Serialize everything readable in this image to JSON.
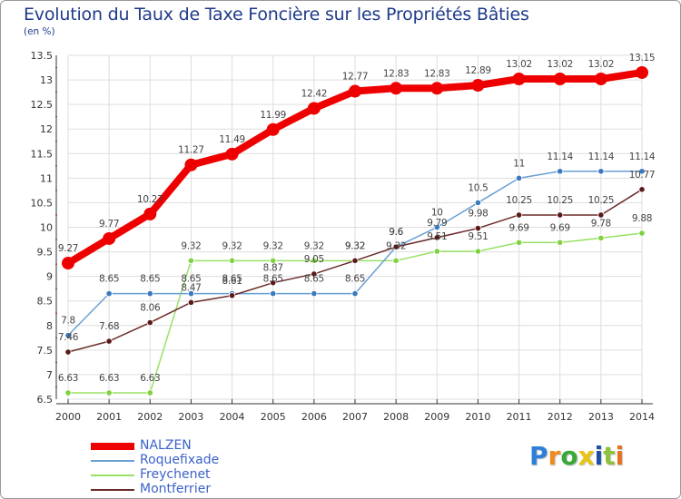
{
  "header": {
    "title": "Evolution du Taux de Taxe Foncière sur les Propriétés Bâties",
    "unit": "(en %)"
  },
  "colors": {
    "NALZEN": "#ee0000",
    "Roquefixade": "#6a9fd4",
    "Freychenet": "#99e066",
    "Montferrier": "#6b2a2a",
    "grid": "#dddddd",
    "axis": "#333333",
    "label": "#444444"
  },
  "logo": {
    "letters": [
      "P",
      "r",
      "o",
      "x",
      "i",
      "t",
      "i"
    ],
    "colors": [
      "#2e7fd8",
      "#f08a1c",
      "#38a838",
      "#e8c413",
      "#1b4fa8",
      "#8fc13a",
      "#e8711d"
    ]
  },
  "chart_data": {
    "type": "line",
    "title": "Evolution du Taux de Taxe Foncière sur les Propriétés Bâties",
    "ylabel": "(en %)",
    "xlabel": "",
    "x": [
      "2000",
      "2001",
      "2002",
      "2003",
      "2004",
      "2005",
      "2006",
      "2007",
      "2008",
      "2009",
      "2010",
      "2011",
      "2012",
      "2013",
      "2014"
    ],
    "ylim": [
      6.5,
      13.5
    ],
    "yticks": [
      "6.5",
      "7",
      "7.5",
      "8",
      "8.5",
      "9",
      "9.5",
      "10",
      "10.5",
      "11",
      "11.5",
      "12",
      "12.5",
      "13",
      "13.5"
    ],
    "grid": true,
    "legend_position": "bottom-left",
    "series": [
      {
        "name": "NALZEN",
        "values": [
          9.27,
          9.77,
          10.27,
          11.27,
          11.49,
          11.99,
          12.42,
          12.77,
          12.83,
          12.83,
          12.89,
          13.02,
          13.02,
          13.02,
          13.15
        ],
        "labels": [
          "9.27",
          "9.77",
          "10.27",
          "11.27",
          "11.49",
          "11.99",
          "12.42",
          "12.77",
          "12.83",
          "12.83",
          "12.89",
          "13.02",
          "13.02",
          "13.02",
          "13.15"
        ]
      },
      {
        "name": "Roquefixade",
        "values": [
          7.8,
          8.65,
          8.65,
          8.65,
          8.65,
          8.65,
          8.65,
          8.65,
          9.6,
          10,
          10.5,
          11,
          11.14,
          11.14,
          11.14
        ],
        "labels": [
          "7.8",
          "8.65",
          "8.65",
          "8.65",
          "8.65",
          "8.65",
          "8.65",
          "8.65",
          "9.6",
          "10",
          "10.5",
          "11",
          "11.14",
          "11.14",
          "11.14"
        ]
      },
      {
        "name": "Freychenet",
        "values": [
          6.63,
          6.63,
          6.63,
          9.32,
          9.32,
          9.32,
          9.32,
          9.32,
          9.32,
          9.51,
          9.51,
          9.69,
          9.69,
          9.78,
          9.88
        ],
        "labels": [
          "6.63",
          "6.63",
          "6.63",
          "9.32",
          "9.32",
          "9.32",
          "9.32",
          "9.32",
          "9.32",
          "9.51",
          "9.51",
          "9.69",
          "9.69",
          "9.78",
          "9.88"
        ]
      },
      {
        "name": "Montferrier",
        "values": [
          7.46,
          7.68,
          8.06,
          8.47,
          8.61,
          8.87,
          9.05,
          9.32,
          9.6,
          9.79,
          9.98,
          10.25,
          10.25,
          10.25,
          10.77
        ],
        "labels": [
          "7.46",
          "7.68",
          "8.06",
          "8.47",
          "8.61",
          "8.87",
          "9.05",
          "9.32",
          "9.6",
          "9.79",
          "9.98",
          "10.25",
          "10.25",
          "10.25",
          "10.77"
        ]
      }
    ]
  }
}
